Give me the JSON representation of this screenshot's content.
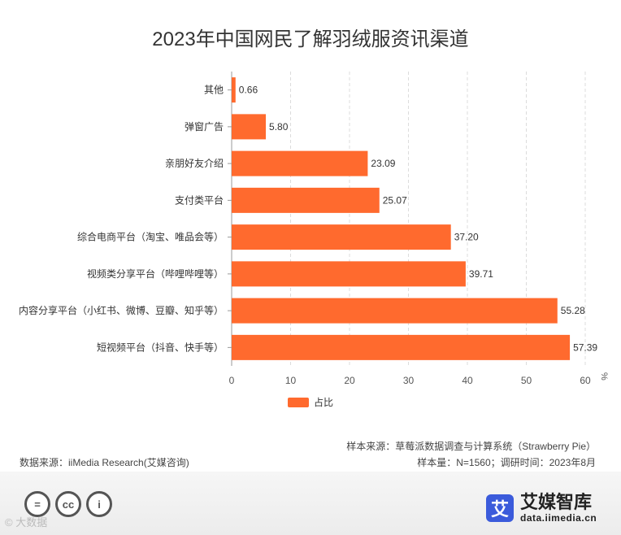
{
  "chart_data": {
    "type": "bar",
    "orientation": "horizontal",
    "title": "2023年中国网民了解羽绒服资讯渠道",
    "categories": [
      "其他",
      "弹窗广告",
      "亲朋好友介绍",
      "支付类平台",
      "综合电商平台（淘宝、唯品会等）",
      "视频类分享平台（哔哩哔哩等）",
      "内容分享平台（小红书、微博、豆瓣、知乎等）",
      "短视频平台（抖音、快手等）"
    ],
    "values": [
      0.66,
      5.8,
      23.09,
      25.07,
      37.2,
      39.71,
      55.28,
      57.39
    ],
    "value_labels": [
      "0.66",
      "5.80",
      "23.09",
      "25.07",
      "37.20",
      "39.71",
      "55.28",
      "57.39"
    ],
    "series_name": "占比",
    "xlim": [
      0,
      60
    ],
    "xticks": [
      "0",
      "10",
      "20",
      "30",
      "40",
      "50",
      "60"
    ],
    "unit_label": "%",
    "grid": "vertical-dashed",
    "legend_position": "bottom-center",
    "bar_color": "#FF6A2E"
  },
  "notes": {
    "sample_source": "样本来源：草莓派数据调查与计算系统（Strawberry Pie）",
    "sample_size": "样本量：N=1560；调研时间：2023年8月",
    "data_source": "数据来源：iiMedia Research(艾媒咨询)"
  },
  "footer": {
    "cc_icons": [
      "=",
      "cc",
      "i"
    ],
    "watermark": "© 大数据",
    "brand_logo_char": "艾",
    "brand_name": "艾媒智库",
    "brand_url": "data.iimedia.cn"
  }
}
